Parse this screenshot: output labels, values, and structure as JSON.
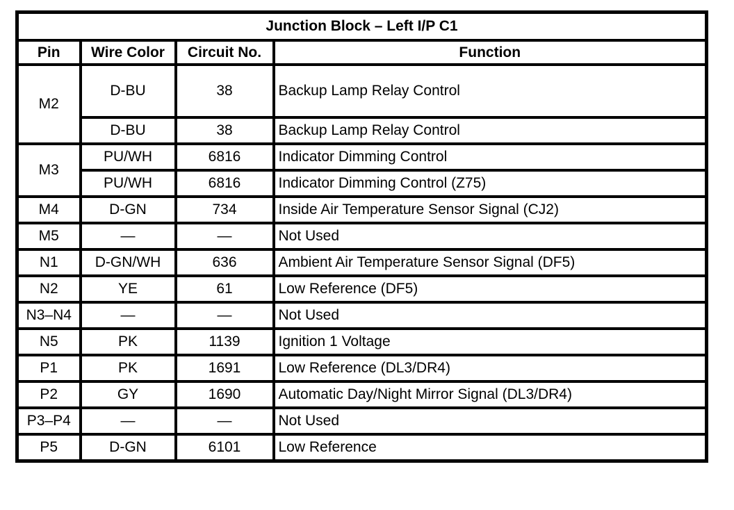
{
  "title": "Junction Block – Left I/P C1",
  "headers": {
    "pin": "Pin",
    "wire_color": "Wire Color",
    "circuit_no": "Circuit No.",
    "function": "Function"
  },
  "rows": [
    {
      "pin": "M2",
      "wire_color": "D-BU",
      "circuit_no": "38",
      "function": "Backup Lamp Relay Control"
    },
    {
      "pin": "",
      "wire_color": "D-BU",
      "circuit_no": "38",
      "function": "Backup Lamp Relay Control"
    },
    {
      "pin": "M3",
      "wire_color": "PU/WH",
      "circuit_no": "6816",
      "function": "Indicator Dimming Control"
    },
    {
      "pin": "",
      "wire_color": "PU/WH",
      "circuit_no": "6816",
      "function": "Indicator Dimming Control (Z75)"
    },
    {
      "pin": "M4",
      "wire_color": "D-GN",
      "circuit_no": "734",
      "function": "Inside Air Temperature Sensor Signal (CJ2)"
    },
    {
      "pin": "M5",
      "wire_color": "—",
      "circuit_no": "—",
      "function": "Not Used"
    },
    {
      "pin": "N1",
      "wire_color": "D-GN/WH",
      "circuit_no": "636",
      "function": "Ambient Air Temperature Sensor Signal (DF5)"
    },
    {
      "pin": "N2",
      "wire_color": "YE",
      "circuit_no": "61",
      "function": "Low Reference (DF5)"
    },
    {
      "pin": "N3–N4",
      "wire_color": "—",
      "circuit_no": "—",
      "function": "Not Used"
    },
    {
      "pin": "N5",
      "wire_color": "PK",
      "circuit_no": "1139",
      "function": "Ignition 1 Voltage"
    },
    {
      "pin": "P1",
      "wire_color": "PK",
      "circuit_no": "1691",
      "function": "Low Reference (DL3/DR4)"
    },
    {
      "pin": "P2",
      "wire_color": "GY",
      "circuit_no": "1690",
      "function": "Automatic Day/Night Mirror Signal (DL3/DR4)"
    },
    {
      "pin": "P3–P4",
      "wire_color": "—",
      "circuit_no": "—",
      "function": "Not Used"
    },
    {
      "pin": "P5",
      "wire_color": "D-GN",
      "circuit_no": "6101",
      "function": "Low Reference"
    }
  ]
}
